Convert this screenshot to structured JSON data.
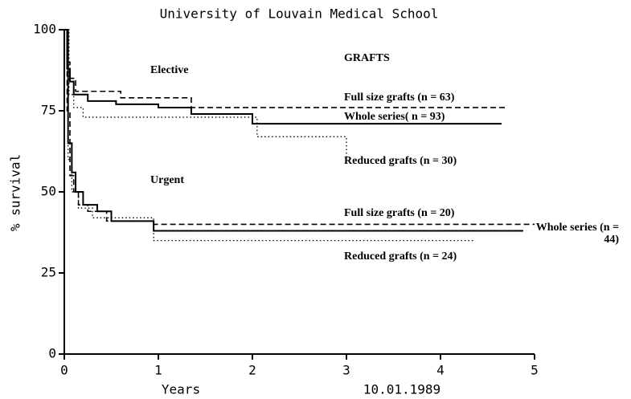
{
  "chart_data": {
    "type": "step",
    "title": "University of Louvain Medical School",
    "x_label": "Years",
    "y_label": "% survival",
    "date": "10.01.1989",
    "annotations": [
      "GRAFTS",
      "Elective",
      "Urgent"
    ],
    "xlim": [
      0,
      5
    ],
    "xticks": [
      0,
      1,
      2,
      3,
      4,
      5
    ],
    "ylim": [
      0,
      100
    ],
    "yticks": [
      0,
      25,
      50,
      75,
      100
    ],
    "series": [
      {
        "name": "Full size grafts (n = 63)",
        "style": "dashed",
        "color": "#000000",
        "x": [
          0,
          0.03,
          0.06,
          0.12,
          0.6,
          1.35,
          4.7
        ],
        "values": [
          100,
          90,
          85,
          81,
          79,
          76,
          76
        ]
      },
      {
        "name": "Whole series( n = 93)",
        "style": "solid",
        "color": "#000000",
        "x": [
          0,
          0.03,
          0.06,
          0.1,
          0.25,
          0.55,
          1.0,
          1.35,
          2.0,
          4.65
        ],
        "values": [
          100,
          88,
          84,
          80,
          78,
          77,
          76,
          74,
          71,
          71
        ]
      },
      {
        "name": "Reduced grafts (n = 30)",
        "style": "dotted",
        "color": "#000000",
        "x": [
          0,
          0.05,
          0.1,
          0.2,
          1.0,
          2.05,
          3.0
        ],
        "values": [
          100,
          80,
          76,
          73,
          73,
          67,
          60
        ]
      },
      {
        "name": "Full size grafts (n = 20)",
        "style": "dashed",
        "color": "#000000",
        "x": [
          0,
          0.03,
          0.06,
          0.1,
          0.15,
          0.25,
          0.45,
          0.95,
          5.0
        ],
        "values": [
          100,
          75,
          55,
          50,
          46,
          44,
          41,
          40,
          40
        ]
      },
      {
        "name": "Whole series (n = 44)",
        "style": "solid",
        "color": "#000000",
        "x": [
          0,
          0.04,
          0.08,
          0.12,
          0.2,
          0.35,
          0.5,
          0.95,
          4.88
        ],
        "values": [
          100,
          65,
          56,
          50,
          46,
          44,
          41,
          38,
          38
        ]
      },
      {
        "name": "Reduced grafts (n = 24)",
        "style": "dotted",
        "color": "#000000",
        "x": [
          0,
          0.04,
          0.08,
          0.15,
          0.3,
          0.95,
          4.35
        ],
        "values": [
          100,
          60,
          50,
          45,
          42,
          35,
          35
        ]
      }
    ]
  }
}
